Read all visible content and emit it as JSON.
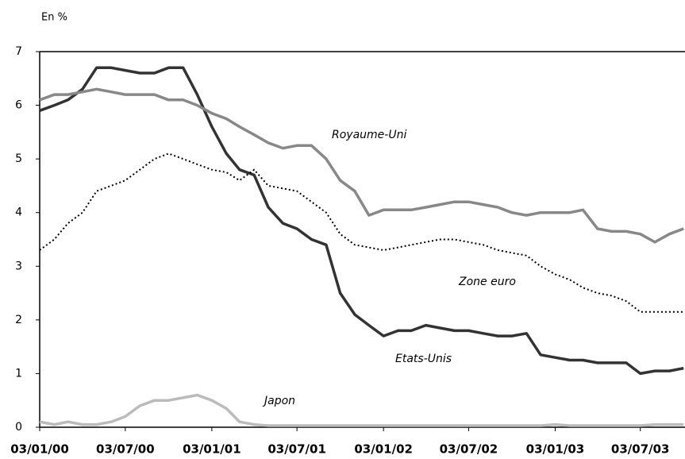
{
  "chart_data": {
    "type": "line",
    "y_axis_label": "En %",
    "x": [
      "2000-01-03",
      "2000-02-03",
      "2000-03-03",
      "2000-04-03",
      "2000-05-03",
      "2000-06-03",
      "2000-07-03",
      "2000-08-03",
      "2000-09-03",
      "2000-10-03",
      "2000-11-03",
      "2000-12-03",
      "2001-01-03",
      "2001-02-03",
      "2001-03-03",
      "2001-04-03",
      "2001-05-03",
      "2001-06-03",
      "2001-07-03",
      "2001-08-03",
      "2001-09-03",
      "2001-10-03",
      "2001-11-03",
      "2001-12-03",
      "2002-01-03",
      "2002-02-03",
      "2002-03-03",
      "2002-04-03",
      "2002-05-03",
      "2002-06-03",
      "2002-07-03",
      "2002-08-03",
      "2002-09-03",
      "2002-10-03",
      "2002-11-03",
      "2002-12-03",
      "2003-01-03",
      "2003-02-03",
      "2003-03-03",
      "2003-04-03",
      "2003-05-03",
      "2003-06-03",
      "2003-07-03",
      "2003-08-03",
      "2003-09-03",
      "2003-10-03"
    ],
    "series": [
      {
        "name": "Etats-Unis",
        "color": "#333333",
        "style": "solid",
        "values": [
          5.9,
          6.0,
          6.1,
          6.3,
          6.7,
          6.7,
          6.65,
          6.6,
          6.6,
          6.7,
          6.7,
          6.2,
          5.6,
          5.1,
          4.8,
          4.7,
          4.1,
          3.8,
          3.7,
          3.5,
          3.4,
          2.5,
          2.1,
          1.9,
          1.7,
          1.8,
          1.8,
          1.9,
          1.85,
          1.8,
          1.8,
          1.75,
          1.7,
          1.7,
          1.75,
          1.35,
          1.3,
          1.25,
          1.25,
          1.2,
          1.2,
          1.2,
          1.0,
          1.05,
          1.05,
          1.1
        ]
      },
      {
        "name": "Royaume-Uni",
        "color": "#888888",
        "style": "solid",
        "values": [
          6.1,
          6.2,
          6.2,
          6.25,
          6.3,
          6.25,
          6.2,
          6.2,
          6.2,
          6.1,
          6.1,
          6.0,
          5.85,
          5.75,
          5.6,
          5.45,
          5.3,
          5.2,
          5.25,
          5.25,
          5.0,
          4.6,
          4.4,
          3.95,
          4.05,
          4.05,
          4.05,
          4.1,
          4.15,
          4.2,
          4.2,
          4.15,
          4.1,
          4.0,
          3.95,
          4.0,
          4.0,
          4.0,
          4.05,
          3.7,
          3.65,
          3.65,
          3.6,
          3.45,
          3.6,
          3.7
        ]
      },
      {
        "name": "Zone euro",
        "color": "#000000",
        "style": "dotted",
        "values": [
          3.3,
          3.5,
          3.8,
          4.0,
          4.4,
          4.5,
          4.6,
          4.8,
          5.0,
          5.1,
          5.0,
          4.9,
          4.8,
          4.75,
          4.6,
          4.8,
          4.5,
          4.45,
          4.4,
          4.2,
          4.0,
          3.6,
          3.4,
          3.35,
          3.3,
          3.35,
          3.4,
          3.45,
          3.5,
          3.5,
          3.45,
          3.4,
          3.3,
          3.25,
          3.2,
          3.0,
          2.85,
          2.75,
          2.6,
          2.5,
          2.45,
          2.35,
          2.15,
          2.15,
          2.15,
          2.15
        ]
      },
      {
        "name": "Japon",
        "color": "#bbbbbb",
        "style": "solid",
        "values": [
          0.1,
          0.05,
          0.1,
          0.05,
          0.05,
          0.1,
          0.2,
          0.4,
          0.5,
          0.5,
          0.55,
          0.6,
          0.5,
          0.35,
          0.1,
          0.05,
          0.03,
          0.03,
          0.03,
          0.03,
          0.03,
          0.03,
          0.03,
          0.03,
          0.03,
          0.03,
          0.03,
          0.03,
          0.03,
          0.03,
          0.03,
          0.03,
          0.03,
          0.03,
          0.03,
          0.03,
          0.05,
          0.03,
          0.03,
          0.03,
          0.03,
          0.03,
          0.03,
          0.05,
          0.05,
          0.05
        ]
      }
    ],
    "xlim": [
      "2000-01-03",
      "2003-10-06"
    ],
    "xticks": [
      {
        "value": "2000-01-03",
        "label": "03/01/00"
      },
      {
        "value": "2000-07-03",
        "label": "03/07/00"
      },
      {
        "value": "2001-01-03",
        "label": "03/01/01"
      },
      {
        "value": "2001-07-03",
        "label": "03/07/01"
      },
      {
        "value": "2002-01-03",
        "label": "03/01/02"
      },
      {
        "value": "2002-07-03",
        "label": "03/07/02"
      },
      {
        "value": "2003-01-03",
        "label": "03/01/03"
      },
      {
        "value": "2003-07-03",
        "label": "03/07/03"
      }
    ],
    "ylim": [
      0,
      7
    ],
    "yticks": [
      0,
      1,
      2,
      3,
      4,
      5,
      6,
      7
    ],
    "grid": false
  }
}
